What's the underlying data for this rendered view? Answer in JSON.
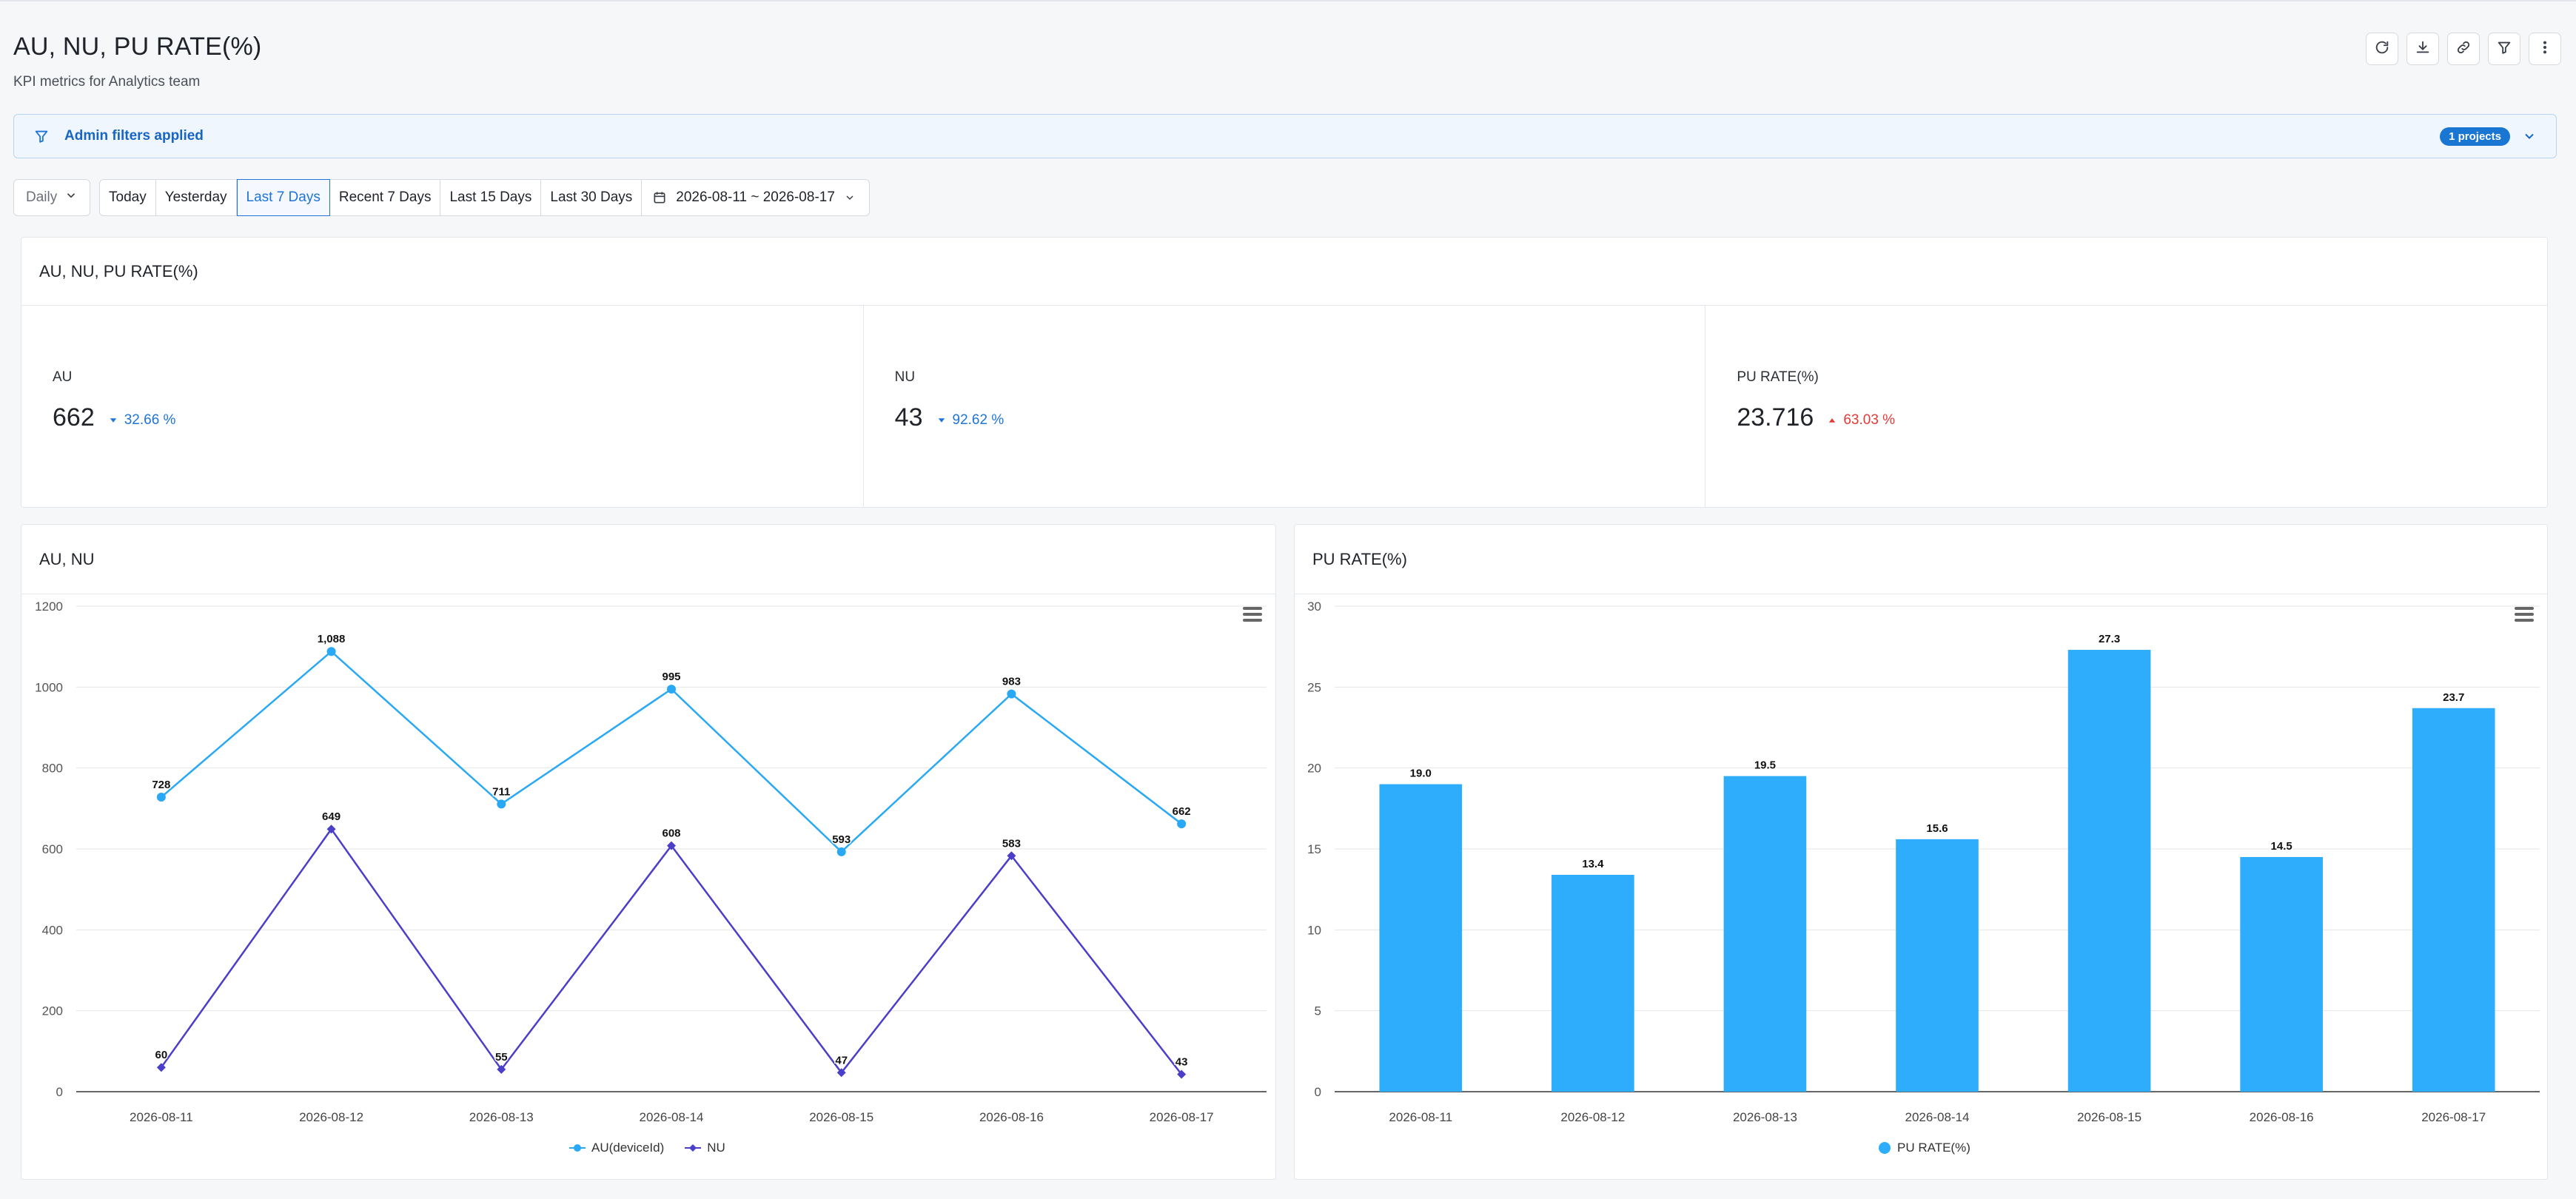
{
  "header": {
    "title": "AU, NU, PU RATE(%)",
    "subtitle": "KPI metrics for Analytics team"
  },
  "toolbar": {
    "icons": [
      "refresh-icon",
      "download-icon",
      "link-icon",
      "filter-icon",
      "more-vertical-icon"
    ]
  },
  "admin_filter": {
    "label": "Admin filters applied",
    "badge": "1 projects"
  },
  "controls": {
    "granularity": "Daily",
    "ranges": [
      "Today",
      "Yesterday",
      "Last 7 Days",
      "Recent 7 Days",
      "Last 15 Days",
      "Last 30 Days"
    ],
    "active_range": "Last 7 Days",
    "date_range": "2026-08-11 ~ 2026-08-17"
  },
  "kpi_panel": {
    "title": "AU, NU, PU RATE(%)",
    "cards": [
      {
        "label": "AU",
        "value": "662",
        "delta": "32.66 %",
        "direction": "down"
      },
      {
        "label": "NU",
        "value": "43",
        "delta": "92.62 %",
        "direction": "down"
      },
      {
        "label": "PU RATE(%)",
        "value": "23.716",
        "delta": "63.03 %",
        "direction": "up"
      }
    ]
  },
  "colors": {
    "au_line": "#29a9f5",
    "nu_line": "#4b3fc9",
    "bar": "#2eadfc",
    "accent": "#1e74d8",
    "delta_up": "#e53935"
  },
  "chart_data": [
    {
      "type": "line",
      "title": "AU, NU",
      "categories": [
        "2026-08-11",
        "2026-08-12",
        "2026-08-13",
        "2026-08-14",
        "2026-08-15",
        "2026-08-16",
        "2026-08-17"
      ],
      "series": [
        {
          "name": "AU(deviceId)",
          "values": [
            728,
            1088,
            711,
            995,
            593,
            983,
            662
          ],
          "labels": [
            "728",
            "1,088",
            "711",
            "995",
            "593",
            "983",
            "662"
          ]
        },
        {
          "name": "NU",
          "values": [
            60,
            649,
            55,
            608,
            47,
            583,
            43
          ],
          "labels": [
            "60",
            "649",
            "55",
            "608",
            "47",
            "583",
            "43"
          ]
        }
      ],
      "ylim": [
        0,
        1200
      ],
      "yticks": [
        0,
        200,
        400,
        600,
        800,
        1000,
        1200
      ],
      "grid": true,
      "legend": "bottom-center"
    },
    {
      "type": "bar",
      "title": "PU RATE(%)",
      "categories": [
        "2026-08-11",
        "2026-08-12",
        "2026-08-13",
        "2026-08-14",
        "2026-08-15",
        "2026-08-16",
        "2026-08-17"
      ],
      "series": [
        {
          "name": "PU RATE(%)",
          "values": [
            19.0,
            13.4,
            19.5,
            15.6,
            27.3,
            14.5,
            23.7
          ],
          "labels": [
            "19.0",
            "13.4",
            "19.5",
            "15.6",
            "27.3",
            "14.5",
            "23.7"
          ]
        }
      ],
      "ylim": [
        0,
        30
      ],
      "yticks": [
        0,
        5,
        10,
        15,
        20,
        25,
        30
      ],
      "grid": true,
      "legend": "bottom-center"
    }
  ]
}
